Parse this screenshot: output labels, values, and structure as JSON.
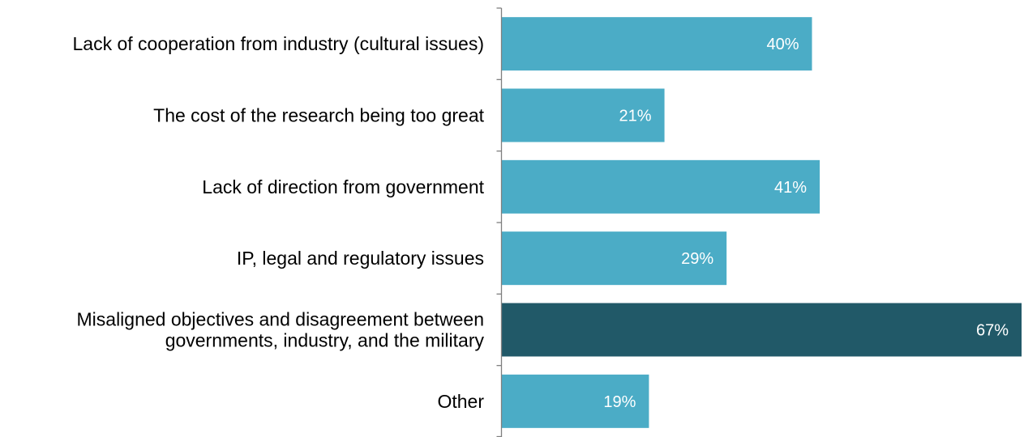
{
  "chart_data": {
    "type": "bar",
    "orientation": "horizontal",
    "categories": [
      "Lack of cooperation from industry (cultural issues)",
      "The cost of the research being too great",
      "Lack of direction from government",
      "IP, legal and regulatory issues",
      "Misaligned objectives and disagreement between governments, industry, and the military",
      "Other"
    ],
    "category_lines": [
      [
        "Lack of cooperation from industry (cultural issues)"
      ],
      [
        "The cost of the research being too great"
      ],
      [
        "Lack of direction from government"
      ],
      [
        "IP, legal and regulatory issues"
      ],
      [
        "Misaligned objectives and disagreement between",
        "governments, industry, and the military"
      ],
      [
        "Other"
      ]
    ],
    "values": [
      40,
      21,
      41,
      29,
      67,
      19
    ],
    "value_labels": [
      "40%",
      "21%",
      "41%",
      "29%",
      "67%",
      "19%"
    ],
    "unit": "%",
    "highlight_index": 4,
    "xlim": [
      0,
      67
    ],
    "grid": false,
    "legend": "none",
    "title": "",
    "xlabel": "",
    "ylabel": "",
    "colors": {
      "bar": "#4BACC6",
      "highlight": "#215968",
      "axis": "#7f7f7f",
      "value_label": "#ffffff",
      "category_label": "#000000"
    }
  }
}
